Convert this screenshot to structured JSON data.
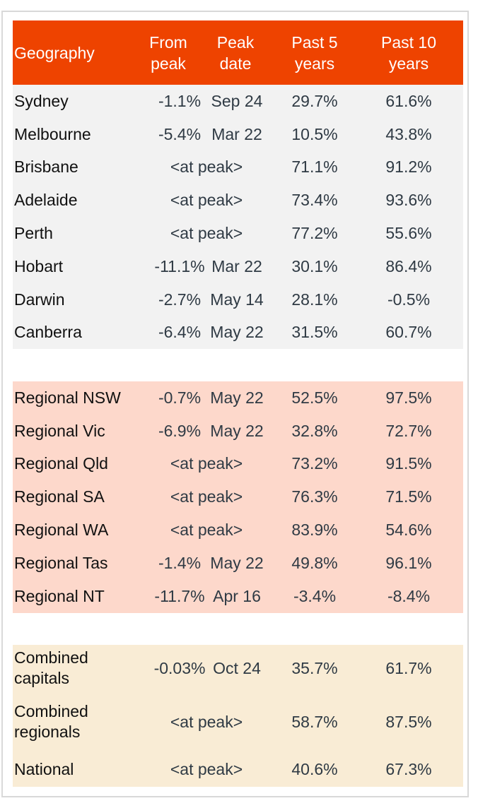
{
  "header": {
    "geography": "Geography",
    "from_peak": "From peak",
    "peak_date": "Peak date",
    "past5": "Past 5 years",
    "past10": "Past 10 years"
  },
  "colors": {
    "header_bg": "#ee4300",
    "capitals_bg": "#f2f2f2",
    "regionals_bg": "#fdd8cb",
    "totals_bg": "#f9ecd5"
  },
  "capitals": [
    {
      "geo": "Sydney",
      "from_peak": "-1.1%",
      "peak_date": "Sep 24",
      "past5": "29.7%",
      "past10": "61.6%"
    },
    {
      "geo": "Melbourne",
      "from_peak": "-5.4%",
      "peak_date": "Mar 22",
      "past5": "10.5%",
      "past10": "43.8%"
    },
    {
      "geo": "Brisbane",
      "at_peak": "<at peak>",
      "past5": "71.1%",
      "past10": "91.2%"
    },
    {
      "geo": "Adelaide",
      "at_peak": "<at peak>",
      "past5": "73.4%",
      "past10": "93.6%"
    },
    {
      "geo": "Perth",
      "at_peak": "<at peak>",
      "past5": "77.2%",
      "past10": "55.6%"
    },
    {
      "geo": "Hobart",
      "from_peak": "-11.1%",
      "peak_date": "Mar 22",
      "past5": "30.1%",
      "past10": "86.4%"
    },
    {
      "geo": "Darwin",
      "from_peak": "-2.7%",
      "peak_date": "May 14",
      "past5": "28.1%",
      "past10": "-0.5%"
    },
    {
      "geo": "Canberra",
      "from_peak": "-6.4%",
      "peak_date": "May 22",
      "past5": "31.5%",
      "past10": "60.7%"
    }
  ],
  "regionals": [
    {
      "geo": "Regional NSW",
      "from_peak": "-0.7%",
      "peak_date": "May 22",
      "past5": "52.5%",
      "past10": "97.5%"
    },
    {
      "geo": "Regional Vic",
      "from_peak": "-6.9%",
      "peak_date": "May 22",
      "past5": "32.8%",
      "past10": "72.7%"
    },
    {
      "geo": "Regional Qld",
      "at_peak": "<at peak>",
      "past5": "73.2%",
      "past10": "91.5%"
    },
    {
      "geo": "Regional SA",
      "at_peak": "<at peak>",
      "past5": "76.3%",
      "past10": "71.5%"
    },
    {
      "geo": "Regional WA",
      "at_peak": "<at peak>",
      "past5": "83.9%",
      "past10": "54.6%"
    },
    {
      "geo": "Regional Tas",
      "from_peak": "-1.4%",
      "peak_date": "May 22",
      "past5": "49.8%",
      "past10": "96.1%"
    },
    {
      "geo": "Regional NT",
      "from_peak": "-11.7%",
      "peak_date": "Apr 16",
      "past5": "-3.4%",
      "past10": "-8.4%"
    }
  ],
  "totals": [
    {
      "geo": "Combined capitals",
      "from_peak": "-0.03%",
      "peak_date": "Oct 24",
      "past5": "35.7%",
      "past10": "61.7%"
    },
    {
      "geo": "Combined regionals",
      "at_peak": "<at peak>",
      "past5": "58.7%",
      "past10": "87.5%"
    },
    {
      "geo": "National",
      "at_peak": "<at peak>",
      "past5": "40.6%",
      "past10": "67.3%"
    }
  ]
}
